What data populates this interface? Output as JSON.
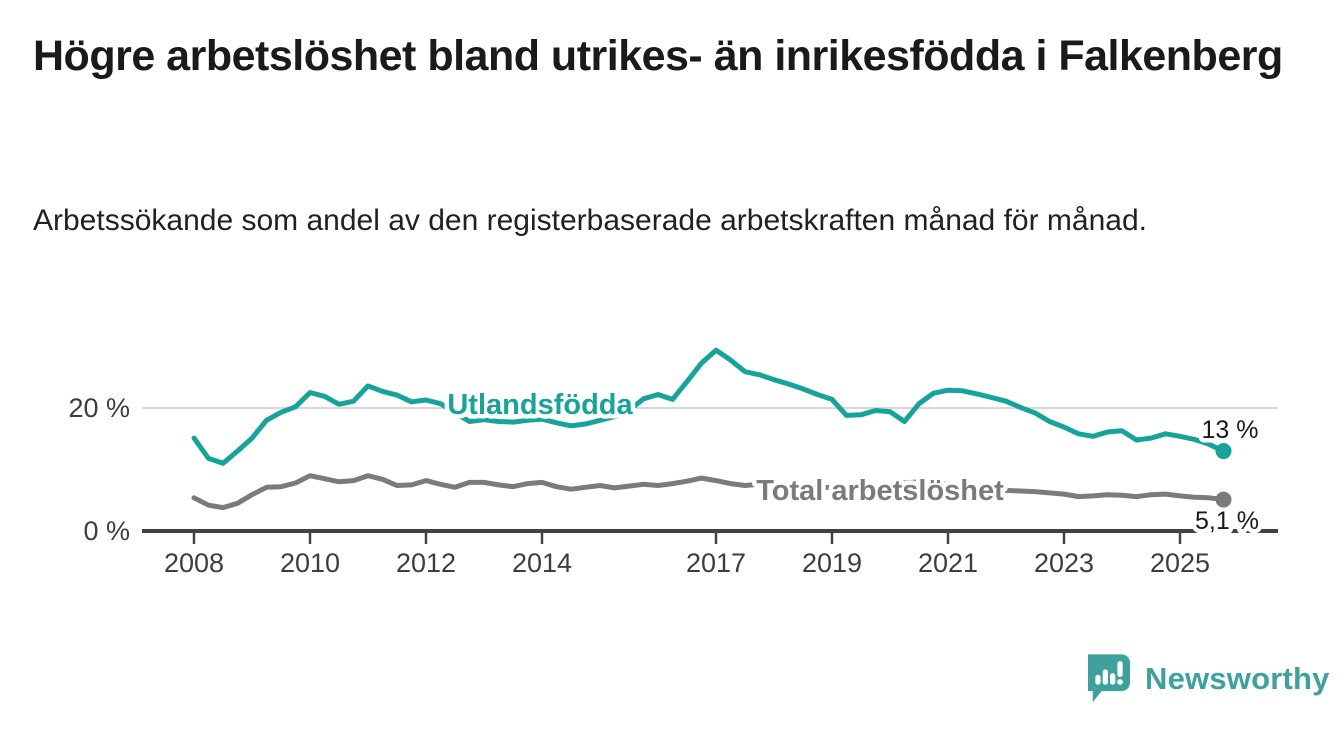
{
  "header": {
    "title": "Högre arbetslöshet bland utrikes- än inrikesfödda i Falkenberg",
    "subtitle": "Arbetssökande som andel av den registerbaserade arbetskraften månad för månad."
  },
  "footer": {
    "brand": "Newsworthy"
  },
  "colors": {
    "accent": "#16a39a",
    "secondary": "#7b7b7b",
    "text": "#1a1a1a",
    "axis": "#424242",
    "grid": "#d8d8d8",
    "brand": "#3ea19d"
  },
  "chart_data": {
    "type": "line",
    "unit": "%",
    "title": "Högre arbetslöshet bland utrikes- än inrikesfödda i Falkenberg",
    "subtitle": "Arbetssökande som andel av den registerbaserade arbetskraften månad för månad.",
    "grid": "single horizontal gridline at 20 %",
    "legend_position": "inline labels on lines",
    "x_axis": {
      "ticks": [
        2008,
        2010,
        2012,
        2014,
        2017,
        2019,
        2021,
        2023,
        2025
      ],
      "range": [
        2008,
        2025.75
      ]
    },
    "y_axis": {
      "ticks": [
        {
          "value": 20,
          "label": "20 %"
        },
        {
          "value": 0,
          "label": "0 %"
        }
      ],
      "range": [
        0,
        32
      ]
    },
    "x": [
      2008,
      2008.25,
      2008.5,
      2008.75,
      2009,
      2009.25,
      2009.5,
      2009.75,
      2010,
      2010.25,
      2010.5,
      2010.75,
      2011,
      2011.25,
      2011.5,
      2011.75,
      2012,
      2012.25,
      2012.5,
      2012.75,
      2013,
      2013.25,
      2013.5,
      2013.75,
      2014,
      2014.25,
      2014.5,
      2014.75,
      2015,
      2015.25,
      2015.5,
      2015.75,
      2016,
      2016.25,
      2016.5,
      2016.75,
      2017,
      2017.25,
      2017.5,
      2017.75,
      2018,
      2018.25,
      2018.5,
      2018.75,
      2019,
      2019.25,
      2019.5,
      2019.75,
      2020,
      2020.25,
      2020.5,
      2020.75,
      2021,
      2021.25,
      2021.5,
      2021.75,
      2022,
      2022.25,
      2022.5,
      2022.75,
      2023,
      2023.25,
      2023.5,
      2023.75,
      2024,
      2024.25,
      2024.5,
      2024.75,
      2025,
      2025.25,
      2025.5,
      2025.75
    ],
    "series": [
      {
        "id": "utlandsfodda",
        "name": "Utlandsfödda",
        "color": "#16a39a",
        "end_value": 13,
        "end_label": "13 %",
        "values": [
          15.1,
          11.8,
          11.0,
          13.0,
          15.1,
          18.0,
          19.3,
          20.2,
          22.5,
          21.9,
          20.6,
          21.1,
          23.6,
          22.7,
          22.1,
          21.0,
          21.3,
          20.7,
          19.2,
          17.8,
          18.1,
          17.8,
          17.7,
          18.0,
          18.2,
          17.6,
          17.1,
          17.4,
          18.0,
          18.6,
          19.6,
          21.5,
          22.2,
          21.4,
          24.3,
          27.3,
          29.4,
          27.8,
          25.9,
          25.4,
          24.6,
          23.9,
          23.1,
          22.2,
          21.4,
          18.8,
          18.9,
          19.6,
          19.4,
          17.8,
          20.7,
          22.4,
          22.9,
          22.8,
          22.3,
          21.7,
          21.1,
          20.1,
          19.2,
          17.8,
          16.9,
          15.8,
          15.4,
          16.1,
          16.3,
          14.8,
          15.1,
          15.8,
          15.4,
          14.9,
          14.1,
          13.0
        ]
      },
      {
        "id": "total",
        "name": "Total arbetslöshet",
        "color": "#7b7b7b",
        "end_value": 5.1,
        "end_label": "5,1 %",
        "values": [
          5.4,
          4.2,
          3.8,
          4.5,
          5.9,
          7.1,
          7.2,
          7.8,
          9.0,
          8.5,
          8.0,
          8.2,
          9.0,
          8.4,
          7.4,
          7.5,
          8.2,
          7.6,
          7.1,
          7.9,
          7.9,
          7.5,
          7.2,
          7.7,
          7.9,
          7.2,
          6.8,
          7.1,
          7.4,
          7.0,
          7.3,
          7.6,
          7.4,
          7.7,
          8.1,
          8.6,
          8.2,
          7.7,
          7.4,
          7.6,
          7.5,
          7.3,
          7.4,
          7.2,
          7.0,
          6.8,
          7.0,
          7.2,
          7.4,
          7.8,
          8.0,
          7.8,
          7.6,
          7.3,
          7.0,
          6.8,
          6.6,
          6.5,
          6.4,
          6.2,
          6.0,
          5.6,
          5.7,
          5.9,
          5.8,
          5.6,
          5.9,
          6.0,
          5.7,
          5.5,
          5.4,
          5.1
        ]
      }
    ]
  }
}
